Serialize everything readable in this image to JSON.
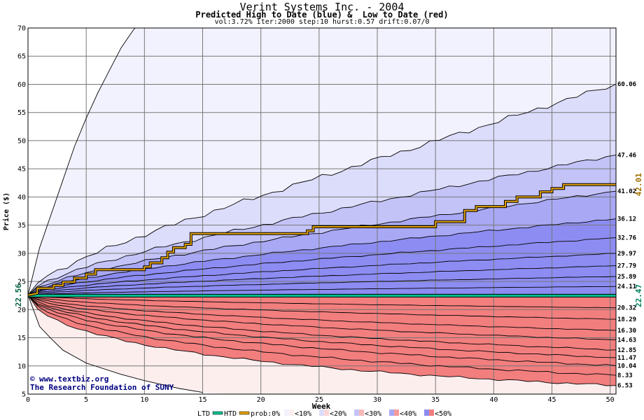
{
  "title": "Verint Systems Inc. - 2004",
  "subtitle": "Predicted High to Date (blue) &  Low to Date (red)",
  "params": "vol:3.72% iter:2000 step:10 hurst:0.57 drift:0.07/0",
  "watermark": {
    "line1": "www.textbiz.org",
    "line2": "The Research Foundation of SUNY"
  },
  "legend": {
    "ltd": "LTD",
    "htd": "HTD",
    "prob": "prob:0%",
    "items": [
      "<10%",
      "<20%",
      "<30%",
      "<40%",
      "<50%"
    ]
  },
  "colors": {
    "htd": "#00c090",
    "ltd_path": "#e0a000",
    "blue_bands": [
      "#f2f2fe",
      "#dcdcfb",
      "#c3c3f8",
      "#a8a8f5",
      "#8c8cf2"
    ],
    "red_bands": [
      "#fdeeee",
      "#fbd6d6",
      "#f8b8b8",
      "#f59a9a",
      "#f27e7e"
    ]
  },
  "chart_data": {
    "type": "area",
    "xlabel": "Week",
    "ylabel": "Price ($)",
    "xlim": [
      0,
      50.5
    ],
    "ylim": [
      5,
      70
    ],
    "x_ticks": [
      0,
      5,
      10,
      15,
      20,
      25,
      30,
      35,
      40,
      45,
      50
    ],
    "y_ticks": [
      5,
      10,
      15,
      20,
      25,
      30,
      35,
      40,
      45,
      50,
      55,
      60,
      65,
      70
    ],
    "start_price": 22.56,
    "start_label": "22.56",
    "current_price": 22.47,
    "current_label": "22.47",
    "path_end_label": "42.01",
    "high_levels": [
      {
        "value": 60.06,
        "label": "60.06"
      },
      {
        "value": 47.46,
        "label": "47.46"
      },
      {
        "value": 41.02,
        "label": "41.02"
      },
      {
        "value": 36.12,
        "label": "36.12"
      },
      {
        "value": 32.76,
        "label": "32.76"
      },
      {
        "value": 29.97,
        "label": "29.97"
      },
      {
        "value": 27.79,
        "label": "27.79"
      },
      {
        "value": 25.89,
        "label": "25.89"
      },
      {
        "value": 24.11,
        "label": "24.11"
      }
    ],
    "low_levels": [
      {
        "value": 20.32,
        "label": "20.32"
      },
      {
        "value": 18.29,
        "label": "18.29"
      },
      {
        "value": 16.3,
        "label": "16.30"
      },
      {
        "value": 14.63,
        "label": "14.63"
      },
      {
        "value": 12.85,
        "label": "12.85"
      },
      {
        "value": 11.47,
        "label": "11.47"
      },
      {
        "value": 10.04,
        "label": "10.04"
      },
      {
        "value": 8.33,
        "label": "8.33"
      },
      {
        "value": 6.53,
        "label": "6.53"
      }
    ],
    "outer_envelope": {
      "high_x": [
        0,
        1,
        2,
        3,
        4,
        5,
        6,
        7,
        8,
        9,
        9.2
      ],
      "high_y": [
        22.56,
        31,
        37,
        43,
        49,
        54,
        58.5,
        62.5,
        66.5,
        69.5,
        70
      ],
      "low_x": [
        0,
        1,
        2,
        3,
        5,
        8,
        10,
        13,
        15
      ],
      "low_y": [
        22.56,
        17,
        14.8,
        12.8,
        10.5,
        8.5,
        7.4,
        6.0,
        5.3
      ]
    },
    "ltd_path": {
      "x": [
        0,
        0.8,
        0.8,
        2.2,
        2.2,
        3,
        3,
        4,
        4,
        5,
        5,
        5.8,
        5.8,
        10,
        10,
        10.5,
        10.5,
        11.5,
        11.5,
        12,
        12,
        12.5,
        12.5,
        13.5,
        13.5,
        14,
        14,
        24,
        24,
        24.5,
        24.5,
        35,
        35,
        37.5,
        37.5,
        38.5,
        38.5,
        41,
        41,
        42,
        42,
        44,
        44,
        45,
        45,
        46,
        46,
        50.5
      ],
      "y": [
        22.56,
        22.9,
        23.8,
        23.8,
        24.3,
        24.3,
        24.9,
        24.9,
        25.6,
        25.6,
        26.3,
        26.3,
        27.1,
        27.1,
        27.6,
        27.6,
        28.3,
        28.3,
        29.2,
        29.2,
        30.2,
        30.2,
        31.0,
        31.0,
        31.6,
        31.6,
        33.5,
        33.5,
        34.0,
        34.0,
        34.7,
        34.7,
        35.6,
        35.6,
        37.6,
        37.6,
        38.3,
        38.3,
        39.2,
        39.2,
        40.0,
        40.0,
        40.9,
        40.9,
        41.5,
        41.5,
        42.2,
        42.2
      ]
    }
  }
}
